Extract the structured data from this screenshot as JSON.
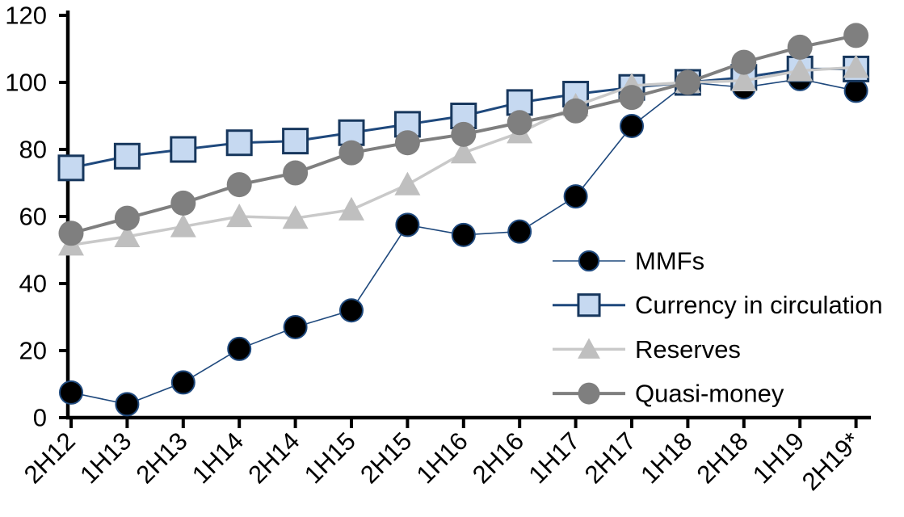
{
  "chart_data": {
    "type": "line",
    "title": "",
    "xlabel": "",
    "ylabel": "",
    "categories": [
      "2H12",
      "1H13",
      "2H13",
      "1H14",
      "2H14",
      "1H15",
      "2H15",
      "1H16",
      "2H16",
      "1H17",
      "2H17",
      "1H18",
      "2H18",
      "1H19",
      "2H19*"
    ],
    "series": [
      {
        "name": "MMFs",
        "values": [
          7.5,
          4,
          10.5,
          20.5,
          27,
          32,
          57.5,
          54.5,
          55.5,
          66,
          87,
          100,
          98.5,
          101,
          97.5
        ],
        "line_color": "#1F497D",
        "line_width": 1.6,
        "marker": "circle",
        "marker_fill": "#000000",
        "marker_stroke": "#1F497D",
        "marker_stroke_width": 2,
        "marker_size": 14
      },
      {
        "name": "Currency in circulation",
        "values": [
          74.5,
          78,
          80,
          82,
          82.5,
          85,
          87.5,
          90,
          94,
          96.5,
          98.5,
          100,
          101.5,
          104,
          104
        ],
        "line_color": "#1F497D",
        "line_width": 3,
        "marker": "square",
        "marker_fill": "#C6D9F1",
        "marker_stroke": "#17375D",
        "marker_stroke_width": 3,
        "marker_size": 15
      },
      {
        "name": "Reserves",
        "values": [
          51.5,
          54,
          57,
          60,
          59.5,
          62,
          69.5,
          79,
          85,
          93,
          99,
          100,
          100.5,
          103.5,
          104.5
        ],
        "line_color": "#C9C9C9",
        "line_width": 3.5,
        "marker": "triangle",
        "marker_fill": "#BFBFBF",
        "marker_stroke": "none",
        "marker_stroke_width": 0,
        "marker_size": 16
      },
      {
        "name": "Quasi-money",
        "values": [
          55,
          59.5,
          64,
          69.5,
          73,
          79,
          82,
          84.5,
          88,
          91.5,
          95.5,
          100,
          106,
          110.5,
          114
        ],
        "line_color": "#7F7F7F",
        "line_width": 4,
        "marker": "circle",
        "marker_fill": "#7F7F7F",
        "marker_stroke": "none",
        "marker_stroke_width": 0,
        "marker_size": 15.5
      }
    ],
    "ylim": [
      0,
      120
    ],
    "yticks": [
      0,
      20,
      40,
      60,
      80,
      100,
      120
    ],
    "grid": false,
    "legend_position": "inside-right",
    "legend_entries": [
      "MMFs",
      "Currency in circulation",
      "Reserves",
      "Quasi-money"
    ],
    "axis_color": "#000000",
    "background": "#FFFFFF"
  }
}
